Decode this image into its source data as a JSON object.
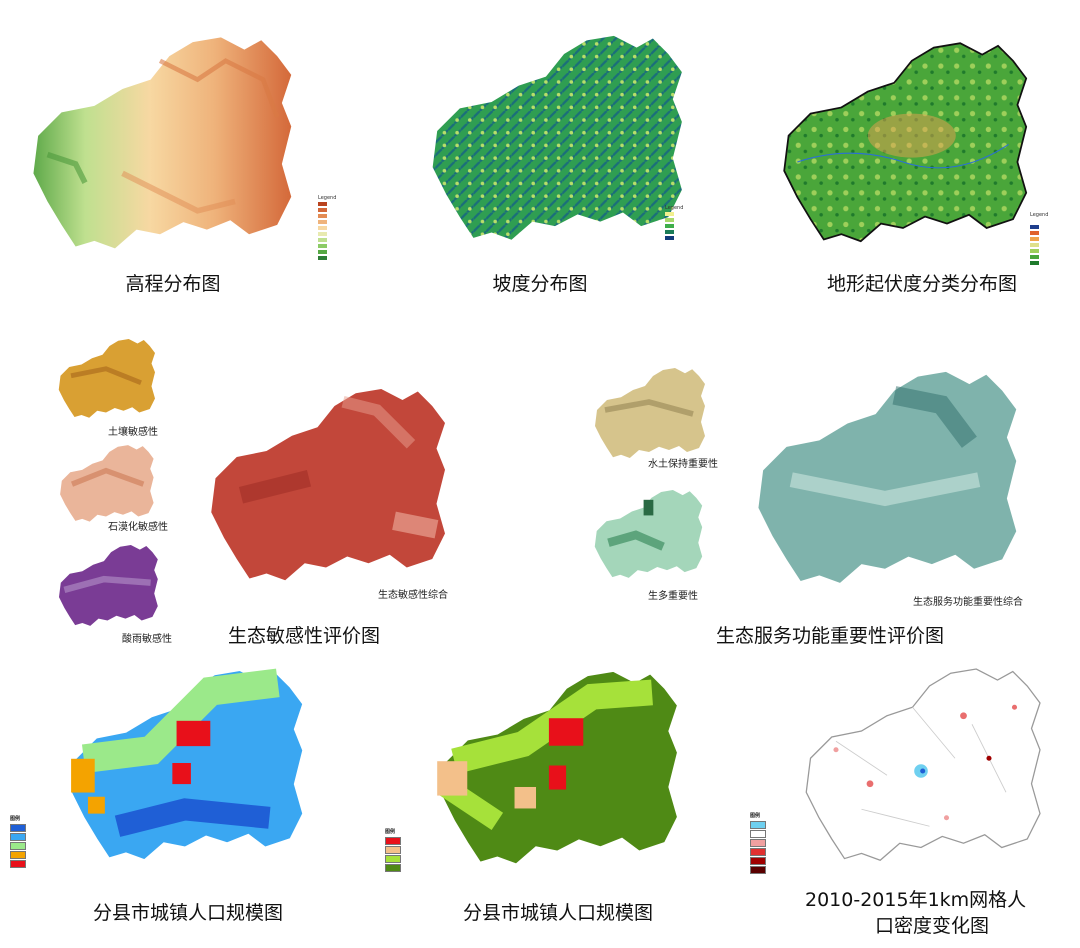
{
  "panels": {
    "elevation": {
      "caption": "高程分布图",
      "legend_title": "Legend",
      "legend_colors": [
        "#b9431f",
        "#d4693a",
        "#e48c54",
        "#efb37b",
        "#f7d8a2",
        "#e8eab0",
        "#bfe08f",
        "#8ccb66",
        "#56a844",
        "#2d7d36"
      ]
    },
    "slope": {
      "caption": "坡度分布图",
      "legend_title": "Legend",
      "legend_colors": [
        "#f2f08f",
        "#a8d86a",
        "#3fae4b",
        "#1b7c57",
        "#123b7a"
      ]
    },
    "relief": {
      "caption": "地形起伏度分类分布图",
      "legend_title": "Legend",
      "legend_colors": [
        "#ffffff",
        "#1f3e8c",
        "#e0622b",
        "#f0a44a",
        "#dfe08a",
        "#9ecf5a",
        "#4aa63a",
        "#1f7a2c"
      ]
    },
    "eco_sensitivity": {
      "caption": "生态敏感性评价图",
      "sub_labels": {
        "soil": "土壤敏感性",
        "rocky": "石漠化敏感性",
        "acid": "酸雨敏感性",
        "combined": "生态敏感性综合"
      }
    },
    "eco_service": {
      "caption": "生态服务功能重要性评价图",
      "sub_labels": {
        "water": "水土保持重要性",
        "bio": "生多重要性",
        "combined": "生态服务功能重要性综合"
      }
    },
    "pop_a": {
      "caption": "分县市城镇人口规模图",
      "legend_title": "图例",
      "legend_colors": [
        "#1f5fd6",
        "#3aa7f2",
        "#9be98a",
        "#f4a300",
        "#e8101a"
      ]
    },
    "pop_b": {
      "caption": "分县市城镇人口规模图",
      "legend_title": "图例",
      "legend_colors": [
        "#e8101a",
        "#f3c08a",
        "#a6e13a",
        "#4f8a15"
      ]
    },
    "density": {
      "caption_line1": "2010-2015年1km网格人",
      "caption_line2": "口密度变化图",
      "legend_title": "图例",
      "legend_colors": [
        "#6fd0f0",
        "#ffffff",
        "#f0a0a0",
        "#e03030",
        "#a00000",
        "#5a0000"
      ]
    }
  }
}
